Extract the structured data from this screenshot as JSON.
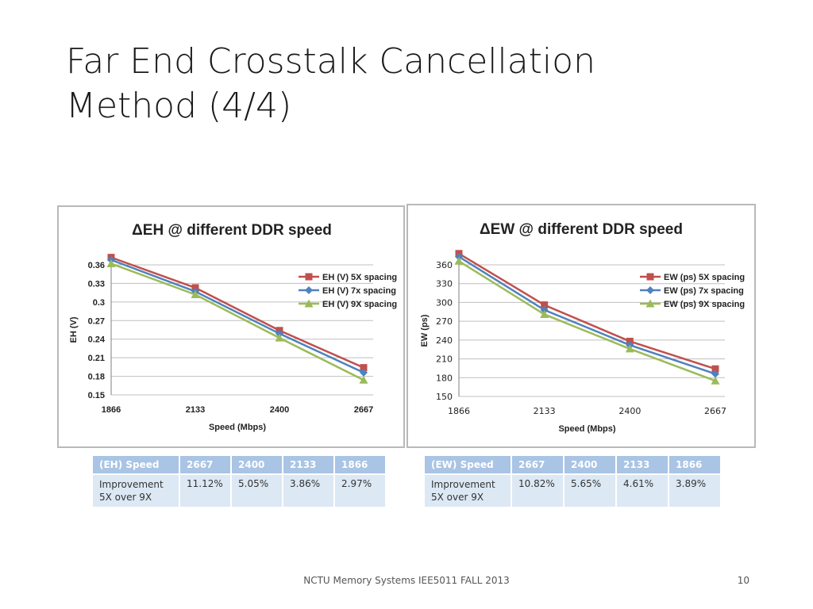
{
  "slide": {
    "title_line1": "Far End Crosstalk Cancellation",
    "title_line2": "Method (4/4)",
    "footer": "NCTU Memory Systems IEE5011 FALL 2013",
    "page_number": "10"
  },
  "chart_data": [
    {
      "type": "line",
      "title": "ΔEH @ different DDR speed",
      "xlabel": "Speed (Mbps)",
      "ylabel": "EH (V)",
      "categories": [
        "1866",
        "2133",
        "2400",
        "2667"
      ],
      "ylim": [
        0.15,
        0.36
      ],
      "yticks": [
        "0.36",
        "0.33",
        "0.3",
        "0.27",
        "0.24",
        "0.21",
        "0.18",
        "0.15"
      ],
      "legend_position": "right",
      "grid": true,
      "series": [
        {
          "name": "EH (V) 5X spacing",
          "color": "#c0504d",
          "marker": "square",
          "values": [
            0.372,
            0.323,
            0.254,
            0.194
          ]
        },
        {
          "name": "EH (V) 7x spacing",
          "color": "#4f81bd",
          "marker": "diamond",
          "values": [
            0.368,
            0.317,
            0.249,
            0.186
          ]
        },
        {
          "name": "EH (V) 9X spacing",
          "color": "#9bbb59",
          "marker": "triangle",
          "values": [
            0.362,
            0.312,
            0.242,
            0.174
          ]
        }
      ]
    },
    {
      "type": "line",
      "title": "ΔEW @ different DDR speed",
      "xlabel": "Speed (Mbps)",
      "ylabel": "EW (ps)",
      "categories": [
        "1866",
        "2133",
        "2400",
        "2667"
      ],
      "ylim": [
        150,
        360
      ],
      "yticks": [
        "360",
        "330",
        "300",
        "270",
        "240",
        "210",
        "180",
        "150"
      ],
      "legend_position": "right",
      "grid": true,
      "series": [
        {
          "name": "EW (ps) 5X spacing",
          "color": "#c0504d",
          "marker": "square",
          "values": [
            378,
            296,
            238,
            194
          ]
        },
        {
          "name": "EW (ps) 7x spacing",
          "color": "#4f81bd",
          "marker": "diamond",
          "values": [
            373,
            288,
            232,
            186
          ]
        },
        {
          "name": "EW (ps) 9X spacing",
          "color": "#9bbb59",
          "marker": "triangle",
          "values": [
            366,
            281,
            226,
            175
          ]
        }
      ]
    }
  ],
  "tables": {
    "eh": {
      "headers": [
        "(EH) Speed",
        "2667",
        "2400",
        "2133",
        "1866"
      ],
      "row_label": "Improvement\n5X over 9X",
      "values": [
        "11.12%",
        "5.05%",
        "3.86%",
        "2.97%"
      ]
    },
    "ew": {
      "headers": [
        "(EW) Speed",
        "2667",
        "2400",
        "2133",
        "1866"
      ],
      "row_label": "Improvement\n5X over 9X",
      "values": [
        "10.82%",
        "5.65%",
        "4.61%",
        "3.89%"
      ]
    }
  }
}
